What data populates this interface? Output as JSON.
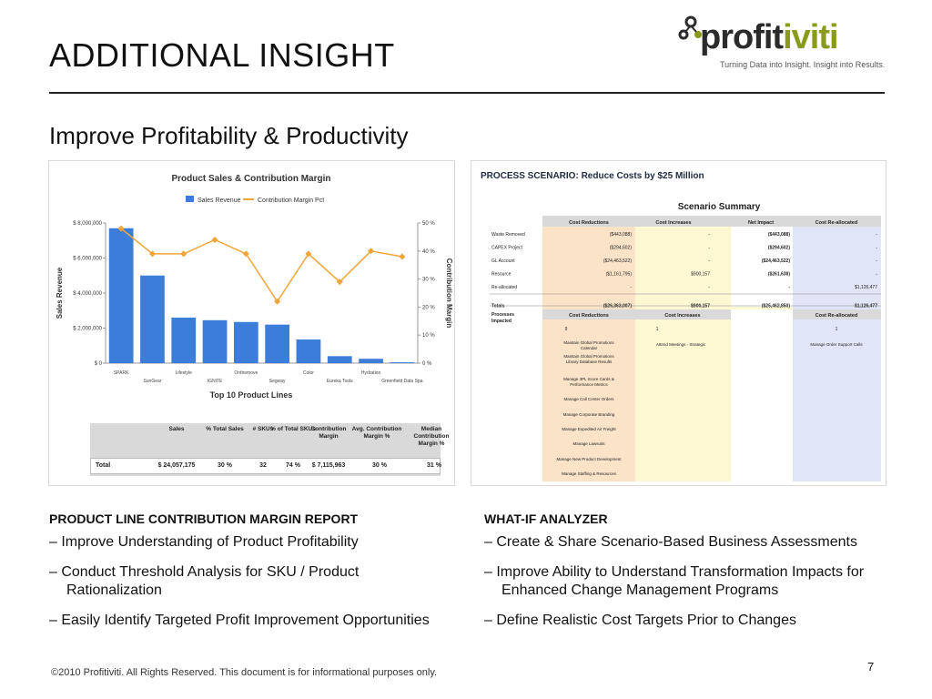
{
  "header": {
    "title": "ADDITIONAL INSIGHT",
    "subtitle": "Improve Profitability & Productivity",
    "logo_text_a": "profit",
    "logo_text_b": "iviti",
    "logo_tagline": "Turning Data into Insight. Insight into Results."
  },
  "chart_data": {
    "type": "bar",
    "title": "Product Sales & Contribution Margin",
    "xlabel": "Top 10 Product Lines",
    "ylabel": "Sales Revenue",
    "y2label": "Contribution Margin",
    "ylim": [
      0,
      8000000
    ],
    "y2lim": [
      0,
      50
    ],
    "yticks": [
      "$ 0",
      "$ 2,000,000",
      "$ 4,000,000",
      "$ 6,000,000",
      "$ 8,000,000"
    ],
    "y2ticks": [
      "0 %",
      "10 %",
      "20 %",
      "30 %",
      "40 %",
      "50 %"
    ],
    "categories": [
      "SPARK",
      "SunGear",
      "Lifestyle",
      "IGNITE",
      "Onthemove",
      "Segway",
      "Color",
      "Eureka Tools",
      "Hydration",
      "Greenfield Data Spa"
    ],
    "series": [
      {
        "name": "Sales Revenue",
        "type": "bar",
        "values": [
          7700000,
          5000000,
          2600000,
          2450000,
          2350000,
          2200000,
          1350000,
          400000,
          250000,
          50000
        ]
      },
      {
        "name": "Contribution Margin Pct",
        "type": "line",
        "values": [
          48,
          39,
          39,
          44,
          39,
          22,
          39,
          29,
          40,
          38
        ]
      }
    ],
    "legend": "top",
    "grid": false
  },
  "summary_table": {
    "headers": [
      "Sales",
      "% Total Sales",
      "# SKUs",
      "% of Total SKUs",
      "Contribution Margin",
      "Avg. Contribution Margin %",
      "Median Contribution Margin %"
    ],
    "row_label": "Total",
    "values": [
      "$ 24,057,175",
      "30 %",
      "32",
      "74 %",
      "$ 7,115,963",
      "30 %",
      "31 %"
    ]
  },
  "scenario": {
    "title": "PROCESS SCENARIO: Reduce Costs by $25 Million",
    "summary_title": "Scenario Summary",
    "headers": [
      "Cost Reductions",
      "Cost Increases",
      "Net Impact",
      "Cost Re-allocated"
    ],
    "rows": [
      {
        "label": "Waste Removed",
        "values": [
          "($443,088)",
          "-",
          "($443,088)",
          "-"
        ]
      },
      {
        "label": "CAPEX Project",
        "values": [
          "($294,602)",
          "-",
          "($294,602)",
          "-"
        ]
      },
      {
        "label": "GL Account",
        "values": [
          "($24,463,522)",
          "-",
          "($24,463,522)",
          "-"
        ]
      },
      {
        "label": "Resource",
        "values": [
          "($1,161,795)",
          "$900,157",
          "($261,638)",
          "-"
        ]
      },
      {
        "label": "Re-allocated",
        "values": [
          "-",
          "-",
          "-",
          "$1,126,477"
        ]
      },
      {
        "label": "Totals",
        "values": [
          "($26,363,007)",
          "$900,157",
          "($25,462,850)",
          "$1,126,477"
        ]
      }
    ],
    "processes_label": "Processes Impacted",
    "proc_headers": [
      "Cost Reductions",
      "Cost Increases",
      "Cost Re-allocated"
    ],
    "proc_counts": [
      "9",
      "1",
      "1"
    ],
    "proc_reductions": [
      "Maintain Global Promotions Calendar",
      "Maintain Global Promotions Library Database Results",
      "Manage 3PL Score Cards & Performance Metrics",
      "Manage Call Center Orders",
      "Manage Corporate Branding",
      "Manage Expedited Air Freight",
      "Manage Lawsuits",
      "Manage New Product Development",
      "Manage Staffing & Resources"
    ],
    "proc_increases": [
      "Attend Meetings - Strategic"
    ],
    "proc_reallocated": [
      "Manage Order Support Calls"
    ]
  },
  "left_section": {
    "heading": "PRODUCT LINE CONTRIBUTION MARGIN REPORT",
    "bullets": [
      "Improve Understanding of Product Profitability",
      "Conduct Threshold Analysis for SKU / Product Rationalization",
      "Easily Identify Targeted Profit Improvement Opportunities"
    ]
  },
  "right_section": {
    "heading": "WHAT-IF ANALYZER",
    "bullets": [
      "Create & Share Scenario-Based Business Assessments",
      "Improve Ability to Understand Transformation Impacts for Enhanced Change Management Programs",
      "Define Realistic Cost Targets Prior to Changes"
    ]
  },
  "footer": {
    "copyright": "©2010 Profitiviti. All Rights Reserved. This document is for informational purposes only.",
    "page_number": "7"
  },
  "colors": {
    "bar": "#3c7dd9",
    "line": "#f0a53a",
    "reductions": "#fbe3c7",
    "increases": "#fdf7d2",
    "reallocated": "#e1e5f8",
    "header_gray": "#d9d9d9"
  }
}
